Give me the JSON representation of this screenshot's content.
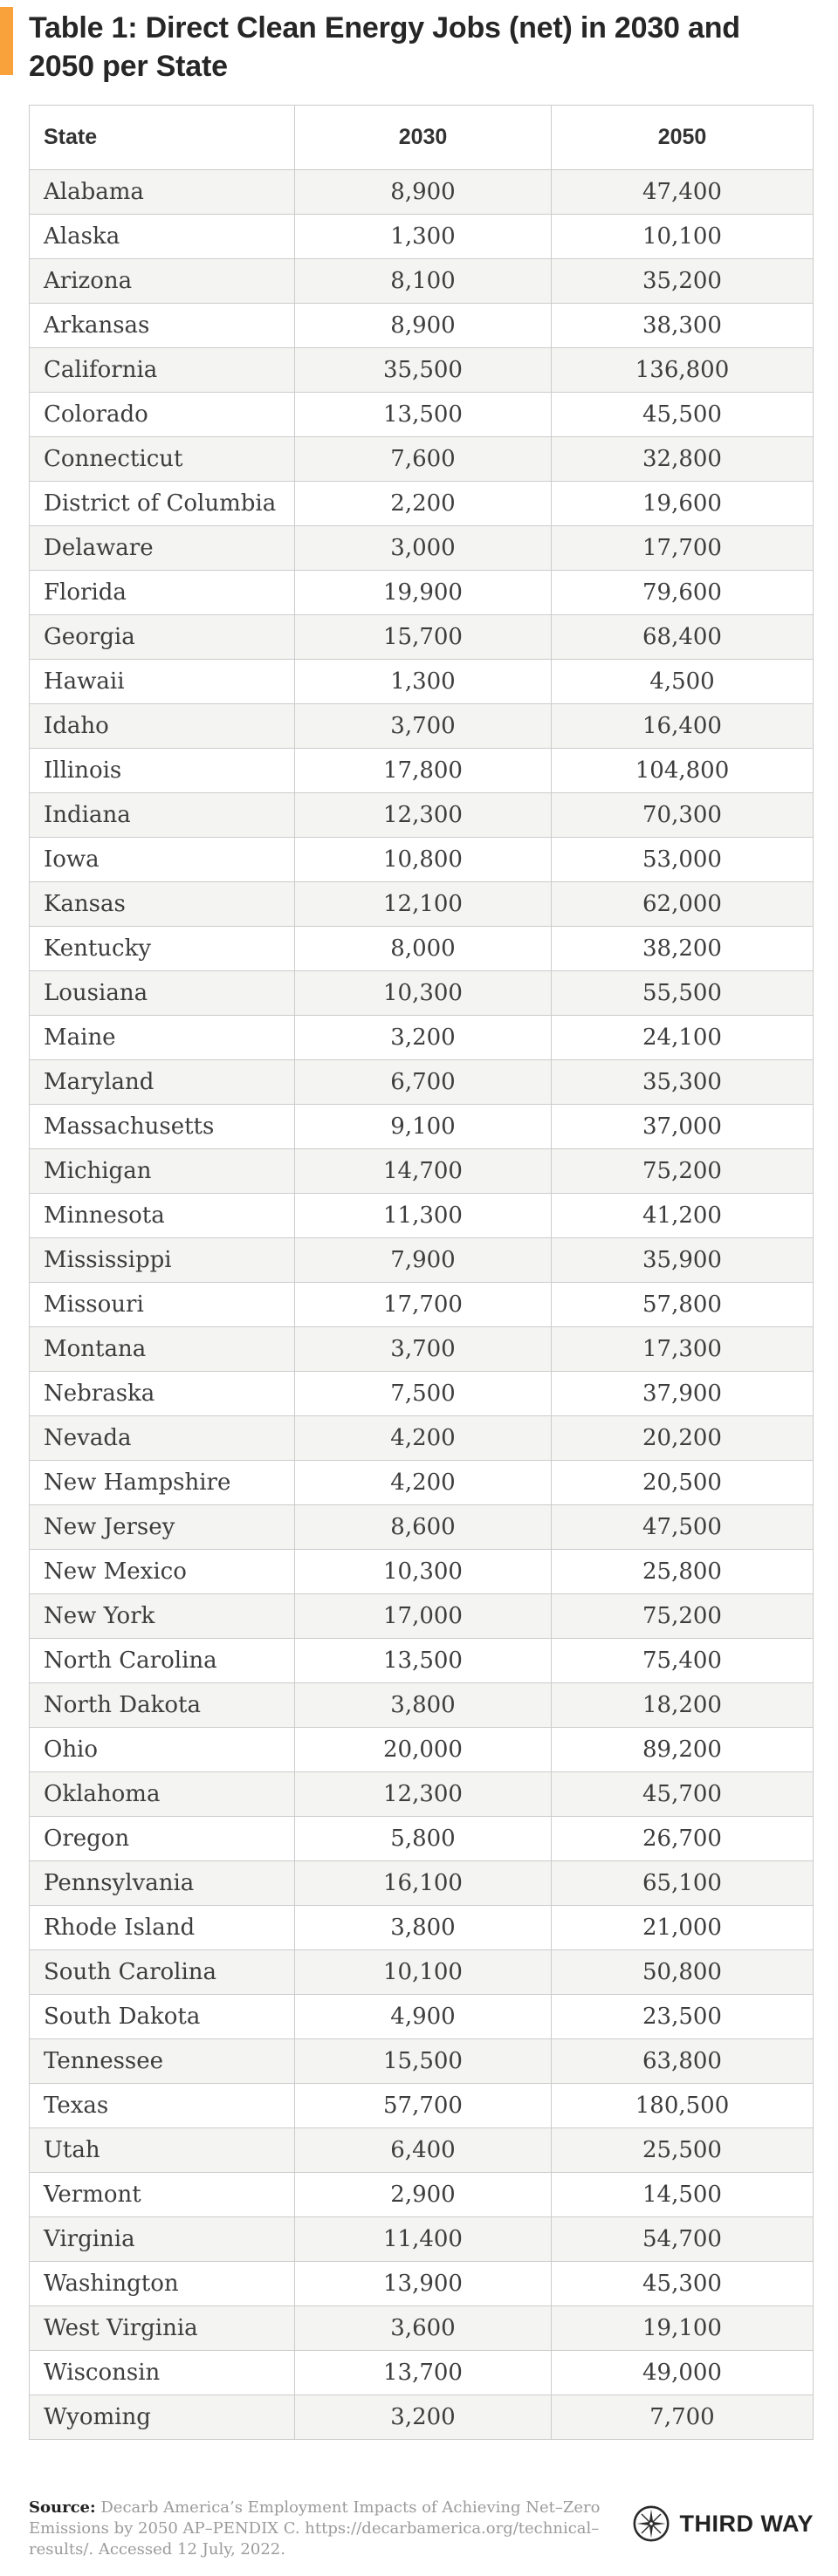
{
  "title": "Table 1: Direct Clean Energy Jobs (net) in 2030 and 2050 per State",
  "accent_color": "#F9A13B",
  "chart_data": {
    "type": "table",
    "title": "Table 1: Direct Clean Energy Jobs (net) in 2030 and 2050 per State",
    "columns": [
      "State",
      "2030",
      "2050"
    ],
    "rows": [
      [
        "Alabama",
        "8,900",
        "47,400"
      ],
      [
        "Alaska",
        "1,300",
        "10,100"
      ],
      [
        "Arizona",
        "8,100",
        "35,200"
      ],
      [
        "Arkansas",
        "8,900",
        "38,300"
      ],
      [
        "California",
        "35,500",
        "136,800"
      ],
      [
        "Colorado",
        "13,500",
        "45,500"
      ],
      [
        "Connecticut",
        "7,600",
        "32,800"
      ],
      [
        "District of Columbia",
        "2,200",
        "19,600"
      ],
      [
        "Delaware",
        "3,000",
        "17,700"
      ],
      [
        "Florida",
        "19,900",
        "79,600"
      ],
      [
        "Georgia",
        "15,700",
        "68,400"
      ],
      [
        "Hawaii",
        "1,300",
        "4,500"
      ],
      [
        "Idaho",
        "3,700",
        "16,400"
      ],
      [
        "Illinois",
        "17,800",
        "104,800"
      ],
      [
        "Indiana",
        "12,300",
        "70,300"
      ],
      [
        "Iowa",
        "10,800",
        "53,000"
      ],
      [
        "Kansas",
        "12,100",
        "62,000"
      ],
      [
        "Kentucky",
        "8,000",
        "38,200"
      ],
      [
        "Lousiana",
        "10,300",
        "55,500"
      ],
      [
        "Maine",
        "3,200",
        "24,100"
      ],
      [
        "Maryland",
        "6,700",
        "35,300"
      ],
      [
        "Massachusetts",
        "9,100",
        "37,000"
      ],
      [
        "Michigan",
        "14,700",
        "75,200"
      ],
      [
        "Minnesota",
        "11,300",
        "41,200"
      ],
      [
        "Mississippi",
        "7,900",
        "35,900"
      ],
      [
        "Missouri",
        "17,700",
        "57,800"
      ],
      [
        "Montana",
        "3,700",
        "17,300"
      ],
      [
        "Nebraska",
        "7,500",
        "37,900"
      ],
      [
        "Nevada",
        "4,200",
        "20,200"
      ],
      [
        "New Hampshire",
        "4,200",
        "20,500"
      ],
      [
        "New Jersey",
        "8,600",
        "47,500"
      ],
      [
        "New Mexico",
        "10,300",
        "25,800"
      ],
      [
        "New York",
        "17,000",
        "75,200"
      ],
      [
        "North Carolina",
        "13,500",
        "75,400"
      ],
      [
        "North Dakota",
        "3,800",
        "18,200"
      ],
      [
        "Ohio",
        "20,000",
        "89,200"
      ],
      [
        "Oklahoma",
        "12,300",
        "45,700"
      ],
      [
        "Oregon",
        "5,800",
        "26,700"
      ],
      [
        "Pennsylvania",
        "16,100",
        "65,100"
      ],
      [
        "Rhode Island",
        "3,800",
        "21,000"
      ],
      [
        "South Carolina",
        "10,100",
        "50,800"
      ],
      [
        "South Dakota",
        "4,900",
        "23,500"
      ],
      [
        "Tennessee",
        "15,500",
        "63,800"
      ],
      [
        "Texas",
        "57,700",
        "180,500"
      ],
      [
        "Utah",
        "6,400",
        "25,500"
      ],
      [
        "Vermont",
        "2,900",
        "14,500"
      ],
      [
        "Virginia",
        "11,400",
        "54,700"
      ],
      [
        "Washington",
        "13,900",
        "45,300"
      ],
      [
        "West Virginia",
        "3,600",
        "19,100"
      ],
      [
        "Wisconsin",
        "13,700",
        "49,000"
      ],
      [
        "Wyoming",
        "3,200",
        "7,700"
      ]
    ]
  },
  "footer": {
    "source_label": "Source:",
    "source_text": " Decarb America’s Employment Impacts of Achieving Net–Zero Emissions by 2050 AP–PENDIX C. https://decarbamerica.org/technical–results/. Accessed 12 July, 2022.",
    "logo_text": "THIRD WAY",
    "logo_icon": "compass-star-icon"
  }
}
